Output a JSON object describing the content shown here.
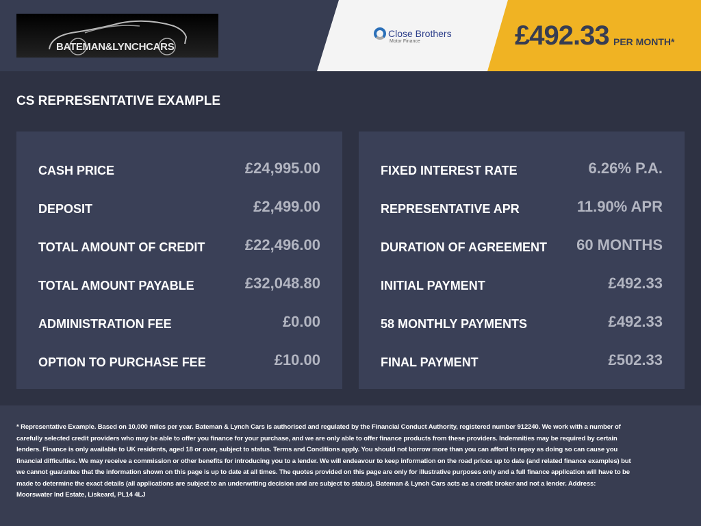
{
  "header": {
    "dealer_logo": "BATEMAN&LYNCHCARS",
    "lender_name": "Close Brothers",
    "lender_sub": "Motor Finance",
    "monthly_price": "£492.33",
    "per_month_label": "PER MONTH*"
  },
  "title": "CS REPRESENTATIVE EXAMPLE",
  "left_panel": [
    {
      "label": "CASH PRICE",
      "value": "£24,995.00"
    },
    {
      "label": "DEPOSIT",
      "value": "£2,499.00"
    },
    {
      "label": "TOTAL AMOUNT OF CREDIT",
      "value": "£22,496.00"
    },
    {
      "label": "TOTAL AMOUNT PAYABLE",
      "value": "£32,048.80"
    },
    {
      "label": "ADMINISTRATION FEE",
      "value": "£0.00"
    },
    {
      "label": "OPTION TO PURCHASE FEE",
      "value": "£10.00"
    }
  ],
  "right_panel": [
    {
      "label": "FIXED INTEREST RATE",
      "value": "6.26% P.A."
    },
    {
      "label": "REPRESENTATIVE APR",
      "value": "11.90% APR"
    },
    {
      "label": "DURATION OF AGREEMENT",
      "value": "60 MONTHS"
    },
    {
      "label": "INITIAL PAYMENT",
      "value": "£492.33"
    },
    {
      "label": "58 MONTHLY PAYMENTS",
      "value": "£492.33"
    },
    {
      "label": "FINAL PAYMENT",
      "value": "£502.33"
    }
  ],
  "footer": "* Representative Example. Based on 10,000 miles per year. Bateman & Lynch Cars is authorised and regulated by the Financial Conduct Authority, registered number 912240. We work with a number of carefully selected credit providers who may be able to offer you finance for your purchase, and we are only able to offer finance products from these providers. Indemnities may be required by certain lenders. Finance is only available to UK residents, aged 18 or over, subject to status. Terms and Conditions apply. You should not borrow more than you can afford to repay as doing so can cause you financial difficulties. We may receive a commission or other benefits for introducing you to a lender. We will endeavour to keep information on the road prices up to date (and related finance examples) but we cannot guarantee that the information shown on this page is up to date at all times. The quotes provided on this page are only for illustrative purposes only and a full finance application will have to be made to determine the exact details (all applications are subject to an underwriting decision and are subject to status). Bateman & Lynch Cars acts as a credit broker and not a lender. Address: Moorswater Ind Estate, Liskeard, PL14 4LJ",
  "colors": {
    "accent": "#f0b323",
    "header": "#373d52",
    "panel": "#3a4057"
  }
}
